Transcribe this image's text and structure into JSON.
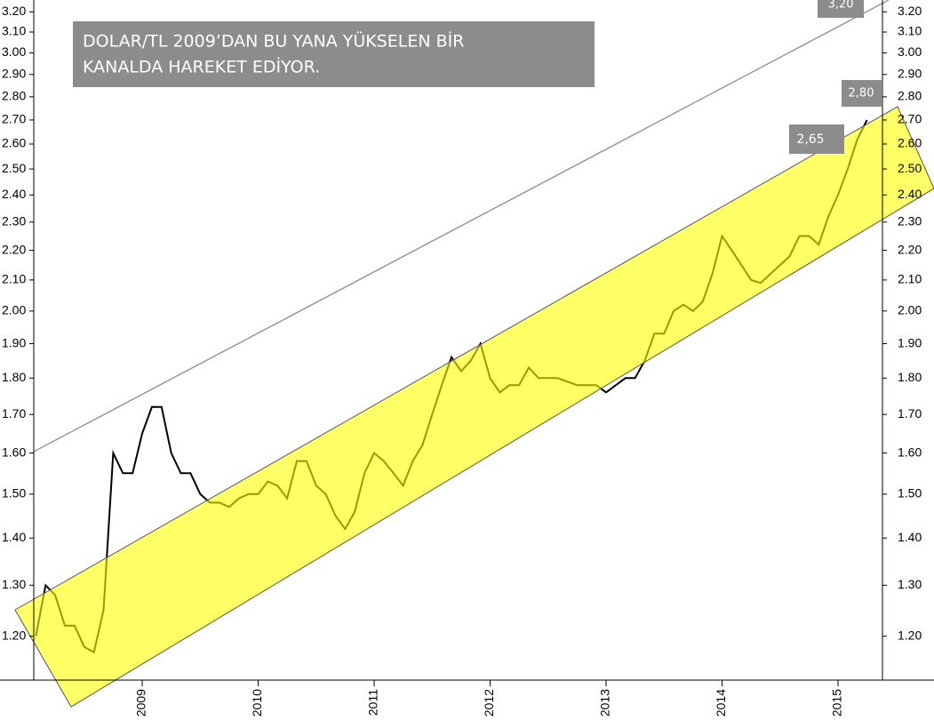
{
  "chart_data": {
    "type": "line",
    "log_scale": true,
    "color": "#000000",
    "annotations": [
      "DOLAR/TL 2009’DAN BU YANA YÜKSELEN BİR",
      "KANALDA HAREKET EDİYOR.",
      "3,20",
      "2,80",
      "2,65"
    ],
    "categories": [
      null,
      null,
      null,
      null,
      null,
      null,
      null,
      null,
      null,
      null,
      null,
      "2009",
      null,
      null,
      null,
      null,
      null,
      null,
      null,
      null,
      null,
      null,
      null,
      "2010",
      null,
      null,
      null,
      null,
      null,
      null,
      null,
      null,
      null,
      null,
      null,
      "2011",
      null,
      null,
      null,
      null,
      null,
      null,
      null,
      null,
      null,
      null,
      null,
      "2012",
      null,
      null,
      null,
      null,
      null,
      null,
      null,
      null,
      null,
      null,
      null,
      "2013",
      null,
      null,
      null,
      null,
      null,
      null,
      null,
      null,
      null,
      null,
      null,
      "2014",
      null,
      null,
      null,
      null,
      null,
      null,
      null,
      null,
      null,
      null,
      null,
      "2015",
      null,
      null,
      null
    ],
    "values": [
      1.2,
      1.3,
      1.28,
      1.22,
      1.22,
      1.18,
      1.17,
      1.25,
      1.6,
      1.55,
      1.55,
      1.65,
      1.72,
      1.72,
      1.6,
      1.55,
      1.55,
      1.5,
      1.48,
      1.48,
      1.47,
      1.49,
      1.5,
      1.5,
      1.53,
      1.52,
      1.49,
      1.58,
      1.58,
      1.52,
      1.5,
      1.45,
      1.42,
      1.46,
      1.55,
      1.6,
      1.58,
      1.55,
      1.52,
      1.58,
      1.62,
      1.7,
      1.78,
      1.86,
      1.82,
      1.85,
      1.9,
      1.8,
      1.76,
      1.78,
      1.78,
      1.83,
      1.8,
      1.8,
      1.8,
      1.79,
      1.78,
      1.78,
      1.78,
      1.76,
      1.78,
      1.8,
      1.8,
      1.85,
      1.93,
      1.93,
      2.0,
      2.02,
      2.0,
      2.03,
      2.12,
      2.25,
      2.2,
      2.15,
      2.1,
      2.09,
      2.12,
      2.15,
      2.18,
      2.25,
      2.25,
      2.22,
      2.32,
      2.4,
      2.5,
      2.62,
      2.7
    ],
    "ylim": [
      1.12,
      3.26
    ],
    "yticks": [
      {
        "value": 1.2,
        "label": "1.20"
      },
      {
        "value": 1.3,
        "label": "1.30"
      },
      {
        "value": 1.4,
        "label": "1.40"
      },
      {
        "value": 1.5,
        "label": "1.50"
      },
      {
        "value": 1.6,
        "label": "1.60"
      },
      {
        "value": 1.7,
        "label": "1.70"
      },
      {
        "value": 1.8,
        "label": "1.80"
      },
      {
        "value": 1.9,
        "label": "1.90"
      },
      {
        "value": 2.0,
        "label": "2.00"
      },
      {
        "value": 2.1,
        "label": "2.10"
      },
      {
        "value": 2.2,
        "label": "2.20"
      },
      {
        "value": 2.3,
        "label": "2.30"
      },
      {
        "value": 2.4,
        "label": "2.40"
      },
      {
        "value": 2.5,
        "label": "2.50"
      },
      {
        "value": 2.6,
        "label": "2.60"
      },
      {
        "value": 2.7,
        "label": "2.70"
      },
      {
        "value": 2.8,
        "label": "2.80"
      },
      {
        "value": 2.9,
        "label": "2.90"
      },
      {
        "value": 3.0,
        "label": "3.00"
      },
      {
        "value": 3.1,
        "label": "3.10"
      },
      {
        "value": 3.2,
        "label": "3.20"
      }
    ]
  }
}
